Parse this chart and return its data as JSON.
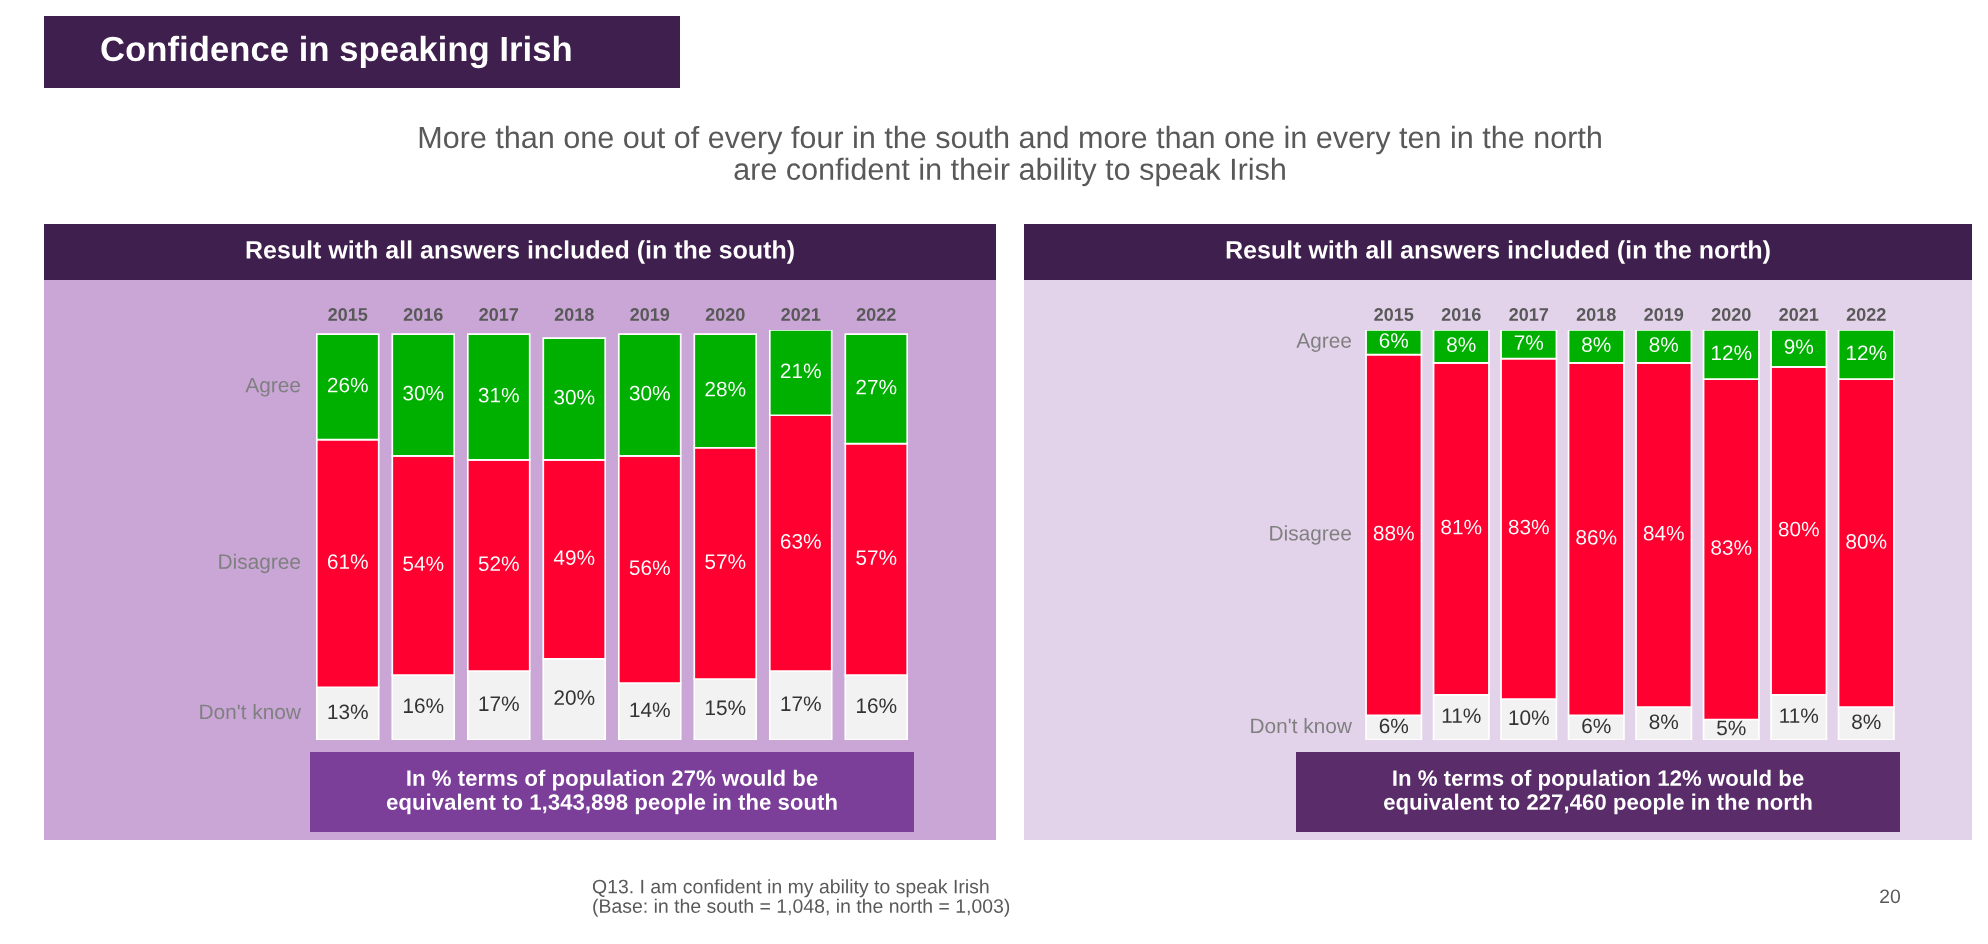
{
  "chart_data": [
    {
      "type": "bar",
      "stacked": true,
      "title": "Result with all answers included (in the south)",
      "tick_labels": "x",
      "legend": false,
      "categories": [
        "2015",
        "2016",
        "2017",
        "2018",
        "2019",
        "2020",
        "2021",
        "2022"
      ],
      "series": [
        {
          "name": "Don't know",
          "color": "#f2f2f2",
          "values": [
            13,
            16,
            17,
            20,
            14,
            15,
            17,
            16
          ],
          "value_labels": [
            "13%",
            "16%",
            "17%",
            "20%",
            "14%",
            "15%",
            "17%",
            "16%"
          ]
        },
        {
          "name": "Disagree",
          "color": "#ff0030",
          "values": [
            61,
            54,
            52,
            49,
            56,
            57,
            63,
            57
          ],
          "value_labels": [
            "61%",
            "54%",
            "52%",
            "49%",
            "56%",
            "57%",
            "63%",
            "57%"
          ]
        },
        {
          "name": "Agree",
          "color": "#00b000",
          "values": [
            26,
            30,
            31,
            30,
            30,
            28,
            21,
            27
          ],
          "value_labels": [
            "26%",
            "30%",
            "31%",
            "30%",
            "30%",
            "28%",
            "21%",
            "27%"
          ]
        }
      ],
      "annotations": [
        "In % terms of population 27% would be\nequivalent to 1,343,898 people in the south",
        "Confidence in speaking Irish",
        "More than one out of every four in the south and more than one in every ten in the north\nare confident in their ability to speak Irish",
        "Q13. I am confident in my ability to speak Irish\n(Base: in the south = 1,048, in the north = 1,003)",
        "20"
      ]
    },
    {
      "type": "bar",
      "stacked": true,
      "title": "Result with all answers included (in the north)",
      "tick_labels": "x",
      "legend": false,
      "categories": [
        "2015",
        "2016",
        "2017",
        "2018",
        "2019",
        "2020",
        "2021",
        "2022"
      ],
      "series": [
        {
          "name": "Don't know",
          "color": "#f2f2f2",
          "values": [
            6,
            11,
            10,
            6,
            8,
            5,
            11,
            8
          ],
          "value_labels": [
            "6%",
            "11%",
            "10%",
            "6%",
            "8%",
            "5%",
            "11%",
            "8%"
          ]
        },
        {
          "name": "Disagree",
          "color": "#ff0030",
          "values": [
            88,
            81,
            83,
            86,
            84,
            83,
            80,
            80
          ],
          "value_labels": [
            "88%",
            "81%",
            "83%",
            "86%",
            "84%",
            "83%",
            "80%",
            "80%"
          ]
        },
        {
          "name": "Agree",
          "color": "#00b000",
          "values": [
            6,
            8,
            7,
            8,
            8,
            12,
            9,
            12
          ],
          "value_labels": [
            "6%",
            "8%",
            "7%",
            "8%",
            "8%",
            "12%",
            "9%",
            "12%"
          ]
        }
      ],
      "annotations": [
        "In % terms of population 12% would be\nequivalent to 227,460 people in the north"
      ]
    }
  ]
}
